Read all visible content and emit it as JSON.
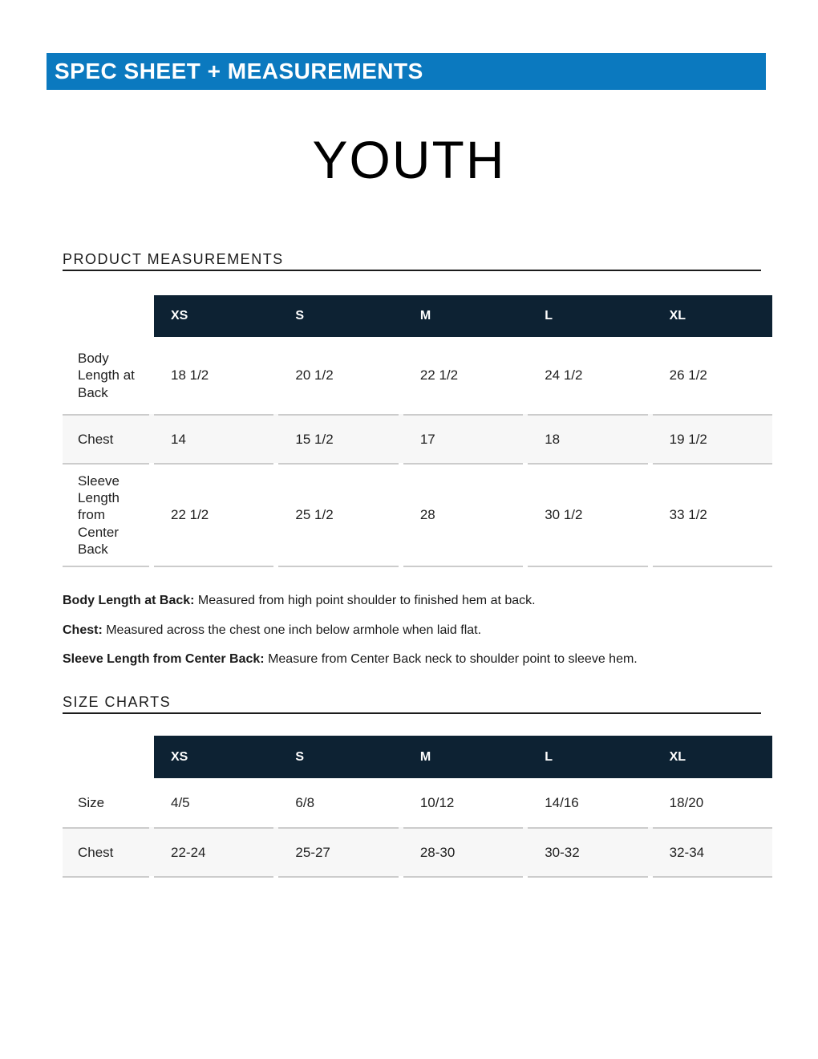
{
  "banner": {
    "label": "SPEC SHEET + MEASUREMENTS"
  },
  "page_title": "YOUTH",
  "colors": {
    "banner_blue": "#0b79bf",
    "header_navy": "#0d2233",
    "zebra_gray": "#f7f7f7",
    "separator_gray": "#cccccc",
    "rule_dark": "#1c1c1c"
  },
  "pm": {
    "heading": "PRODUCT MEASUREMENTS",
    "columns": [
      "XS",
      "S",
      "M",
      "L",
      "XL"
    ],
    "rows": [
      {
        "label": "Body Length at Back",
        "values": [
          "18 1/2",
          "20 1/2",
          "22 1/2",
          "24 1/2",
          "26 1/2"
        ]
      },
      {
        "label": "Chest",
        "values": [
          "14",
          "15 1/2",
          "17",
          "18",
          "19 1/2"
        ]
      },
      {
        "label": "Sleeve Length from Center Back",
        "values": [
          "22 1/2",
          "25 1/2",
          "28",
          "30 1/2",
          "33 1/2"
        ]
      }
    ],
    "definitions": [
      {
        "term": "Body Length at Back:",
        "text": " Measured from high point shoulder to finished hem at back."
      },
      {
        "term": "Chest:",
        "text": " Measured across the chest one inch below armhole when laid flat."
      },
      {
        "term": "Sleeve Length from Center Back:",
        "text": " Measure from Center Back neck to shoulder point to sleeve hem."
      }
    ]
  },
  "sc": {
    "heading": "SIZE CHARTS",
    "columns": [
      "XS",
      "S",
      "M",
      "L",
      "XL"
    ],
    "rows": [
      {
        "label": "Size",
        "values": [
          "4/5",
          "6/8",
          "10/12",
          "14/16",
          "18/20"
        ]
      },
      {
        "label": "Chest",
        "values": [
          "22-24",
          "25-27",
          "28-30",
          "30-32",
          "32-34"
        ]
      }
    ]
  }
}
